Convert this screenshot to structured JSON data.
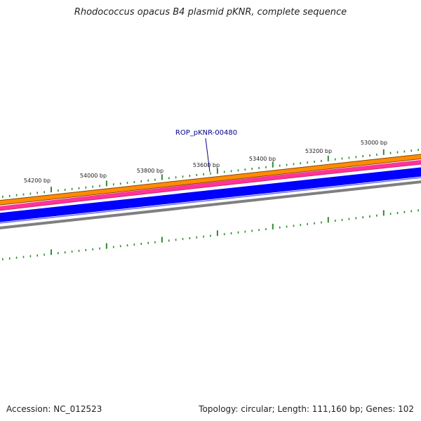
{
  "title": "Rhodococcus opacus B4 plasmid pKNR, complete sequence",
  "gene_label": "ROP_pKNR-00480",
  "ticks": [
    "54200 bp",
    "54000 bp",
    "53800 bp",
    "53600 bp",
    "53400 bp",
    "53200 bp",
    "53000 bp"
  ],
  "footer": {
    "accession": "Accession: NC_012523",
    "summary": "Topology: circular; Length: 111,160 bp; Genes: 102"
  },
  "colors": {
    "tick": "#2e8b2e",
    "orange_track": "#ff8c00",
    "pink_track": "#ff3399",
    "blue_track": "#0000ff",
    "grey_track": "#808080",
    "label": "#00008b"
  }
}
